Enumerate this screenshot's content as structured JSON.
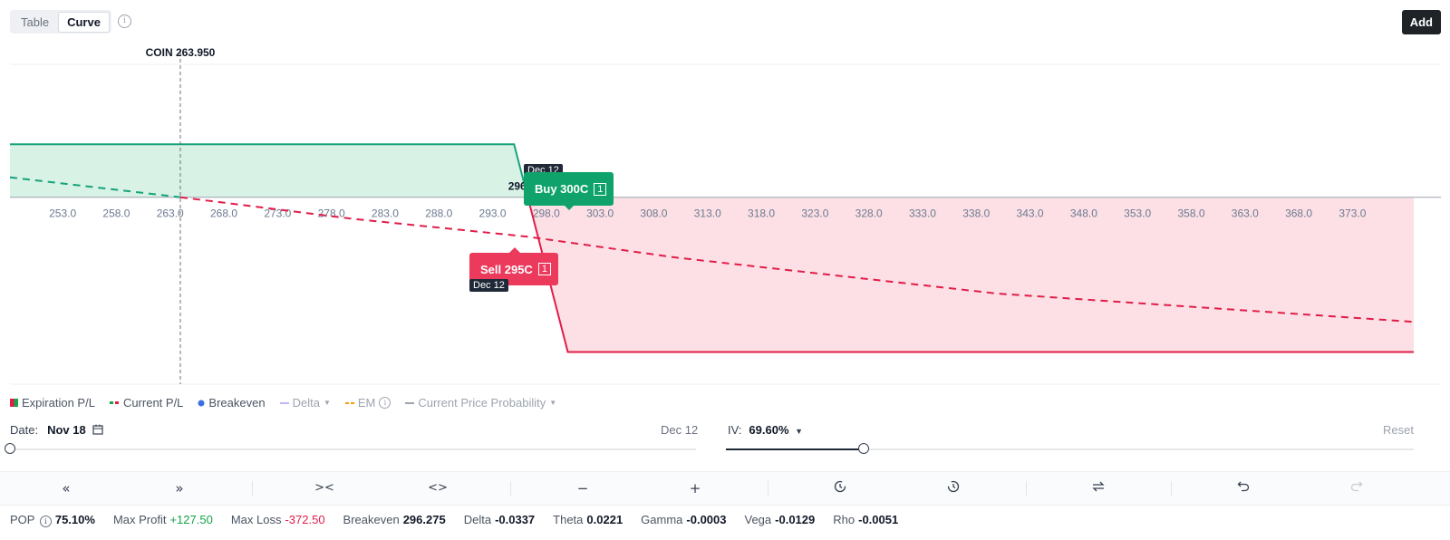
{
  "view_toggle": {
    "table_label": "Table",
    "curve_label": "Curve"
  },
  "add_label": "Add",
  "underlying": {
    "label": "COIN 263.950"
  },
  "breakeven_label": "296.275",
  "legs": [
    {
      "label": "Buy 300C",
      "qty": "1",
      "date": "Dec 12",
      "color": "#0fa36b"
    },
    {
      "label": "Sell 295C",
      "qty": "1",
      "date": "Dec 12",
      "color": "#ec3a5d"
    }
  ],
  "legend": {
    "expiration": "Expiration P/L",
    "current": "Current P/L",
    "breakeven": "Breakeven",
    "delta": "Delta",
    "em": "EM",
    "probability": "Current Price Probability"
  },
  "controls": {
    "date_label": "Date:",
    "date_value": "Nov 18",
    "expiry": "Dec 12",
    "iv_label": "IV:",
    "iv_value": "69.60%",
    "reset": "Reset"
  },
  "stats": {
    "pop_label": "POP",
    "pop": "75.10%",
    "max_profit_label": "Max Profit",
    "max_profit": "+127.50",
    "max_loss_label": "Max Loss",
    "max_loss": "-372.50",
    "breakeven_label": "Breakeven",
    "breakeven": "296.275",
    "delta_label": "Delta",
    "delta": "-0.0337",
    "theta_label": "Theta",
    "theta": "0.0221",
    "gamma_label": "Gamma",
    "gamma": "-0.0003",
    "vega_label": "Vega",
    "vega": "-0.0129",
    "rho_label": "Rho",
    "rho": "-0.0051"
  },
  "colors": {
    "profit": "#16a34a",
    "loss": "#e11d48",
    "breakeven": "#3b6fe0"
  },
  "chart_data": {
    "type": "line",
    "x_ticks": [
      "253.0",
      "258.0",
      "263.0",
      "268.0",
      "273.0",
      "278.0",
      "283.0",
      "288.0",
      "293.0",
      "298.0",
      "303.0",
      "308.0",
      "313.0",
      "318.0",
      "323.0",
      "328.0",
      "333.0",
      "338.0",
      "343.0",
      "348.0",
      "353.0",
      "358.0",
      "363.0",
      "368.0",
      "373.0"
    ],
    "xlim": [
      248.1,
      378.7
    ],
    "ylim": [
      -450,
      320
    ],
    "current_price": 263.95,
    "series": [
      {
        "name": "Expiration P/L",
        "style": "solid",
        "points": [
          [
            248.1,
            127.5
          ],
          [
            295,
            127.5
          ],
          [
            300,
            -372.5
          ],
          [
            378.7,
            -372.5
          ]
        ]
      },
      {
        "name": "Current P/L",
        "style": "dashed",
        "points": [
          [
            248.1,
            48
          ],
          [
            263.95,
            0
          ],
          [
            280,
            -52
          ],
          [
            296.275,
            -95
          ],
          [
            310,
            -145
          ],
          [
            340,
            -232
          ],
          [
            378.7,
            -300
          ]
        ]
      }
    ],
    "breakeven": 296.275
  }
}
